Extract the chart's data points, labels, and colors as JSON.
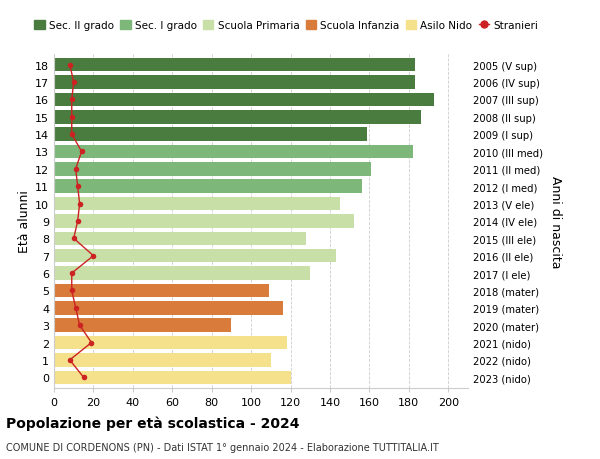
{
  "ages": [
    18,
    17,
    16,
    15,
    14,
    13,
    12,
    11,
    10,
    9,
    8,
    7,
    6,
    5,
    4,
    3,
    2,
    1,
    0
  ],
  "right_labels": [
    "2005 (V sup)",
    "2006 (IV sup)",
    "2007 (III sup)",
    "2008 (II sup)",
    "2009 (I sup)",
    "2010 (III med)",
    "2011 (II med)",
    "2012 (I med)",
    "2013 (V ele)",
    "2014 (IV ele)",
    "2015 (III ele)",
    "2016 (II ele)",
    "2017 (I ele)",
    "2018 (mater)",
    "2019 (mater)",
    "2020 (mater)",
    "2021 (nido)",
    "2022 (nido)",
    "2023 (nido)"
  ],
  "bar_values": [
    183,
    183,
    193,
    186,
    159,
    182,
    161,
    156,
    145,
    152,
    128,
    143,
    130,
    109,
    116,
    90,
    118,
    110,
    120
  ],
  "bar_colors": [
    "#4a7c3f",
    "#4a7c3f",
    "#4a7c3f",
    "#4a7c3f",
    "#4a7c3f",
    "#7db87a",
    "#7db87a",
    "#7db87a",
    "#c8dfa8",
    "#c8dfa8",
    "#c8dfa8",
    "#c8dfa8",
    "#c8dfa8",
    "#d97b3a",
    "#d97b3a",
    "#d97b3a",
    "#f5e08c",
    "#f5e08c",
    "#f5e08c"
  ],
  "stranieri_values": [
    8,
    10,
    9,
    9,
    9,
    14,
    11,
    12,
    13,
    12,
    10,
    20,
    9,
    9,
    11,
    13,
    19,
    8,
    15
  ],
  "legend_labels": [
    "Sec. II grado",
    "Sec. I grado",
    "Scuola Primaria",
    "Scuola Infanzia",
    "Asilo Nido",
    "Stranieri"
  ],
  "legend_colors": [
    "#4a7c3f",
    "#7db87a",
    "#c8dfa8",
    "#d97b3a",
    "#f5e08c",
    "#cc2222"
  ],
  "ylabel_left": "Età alunni",
  "ylabel_right": "Anni di nascita",
  "title": "Popolazione per età scolastica - 2024",
  "subtitle": "COMUNE DI CORDENONS (PN) - Dati ISTAT 1° gennaio 2024 - Elaborazione TUTTITALIA.IT",
  "xlim": [
    0,
    210
  ],
  "xticks": [
    0,
    20,
    40,
    60,
    80,
    100,
    120,
    140,
    160,
    180,
    200
  ],
  "bg_color": "#ffffff",
  "bar_height": 0.78,
  "grid_color": "#cccccc"
}
